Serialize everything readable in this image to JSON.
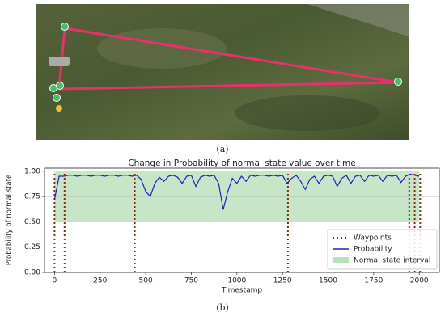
{
  "panel_labels": [
    "(a)",
    "(b)"
  ],
  "chart_data": {
    "type": "line",
    "title": "Change in Probability of normal state value over time",
    "x_label": "Timestamp",
    "y_label": "Probability of normal state",
    "xlim": [
      -55,
      2110
    ],
    "ylim": [
      0,
      1.03
    ],
    "xticks": [
      0,
      250,
      500,
      750,
      1000,
      1250,
      1500,
      1750,
      2000
    ],
    "yticks": [
      {
        "value": 0,
        "label": "0.00"
      },
      {
        "value": 0.25,
        "label": "0.25"
      },
      {
        "value": 0.5,
        "label": "0.50"
      },
      {
        "value": 0.75,
        "label": "0.75"
      },
      {
        "value": 1,
        "label": "1.00"
      }
    ],
    "grid": true,
    "legend": "lower right",
    "x": [
      0,
      25,
      50,
      75,
      100,
      125,
      150,
      175,
      200,
      225,
      250,
      275,
      300,
      325,
      350,
      375,
      400,
      425,
      450,
      475,
      500,
      525,
      550,
      575,
      600,
      625,
      650,
      675,
      700,
      725,
      750,
      775,
      800,
      825,
      850,
      875,
      900,
      925,
      950,
      975,
      1000,
      1025,
      1050,
      1075,
      1100,
      1125,
      1150,
      1175,
      1200,
      1225,
      1250,
      1275,
      1300,
      1325,
      1350,
      1375,
      1400,
      1425,
      1450,
      1475,
      1500,
      1525,
      1550,
      1575,
      1600,
      1625,
      1650,
      1675,
      1700,
      1725,
      1750,
      1775,
      1800,
      1825,
      1850,
      1875,
      1900,
      1925,
      1950,
      1975,
      2000
    ],
    "waypoints": {
      "name": "Waypoints",
      "color": "#8b2a0e",
      "x": [
        0,
        55,
        440,
        1280,
        1945,
        1975,
        2005
      ]
    },
    "series": [
      {
        "name": "Probability",
        "color": "#1f1fc8",
        "values": [
          0.72,
          0.95,
          0.95,
          0.96,
          0.96,
          0.95,
          0.96,
          0.96,
          0.95,
          0.96,
          0.96,
          0.95,
          0.96,
          0.96,
          0.95,
          0.96,
          0.96,
          0.95,
          0.96,
          0.92,
          0.8,
          0.75,
          0.88,
          0.94,
          0.9,
          0.95,
          0.96,
          0.94,
          0.88,
          0.95,
          0.96,
          0.85,
          0.94,
          0.96,
          0.95,
          0.96,
          0.88,
          0.62,
          0.8,
          0.93,
          0.88,
          0.95,
          0.9,
          0.96,
          0.95,
          0.96,
          0.96,
          0.95,
          0.96,
          0.95,
          0.96,
          0.88,
          0.93,
          0.96,
          0.9,
          0.82,
          0.92,
          0.95,
          0.88,
          0.95,
          0.96,
          0.95,
          0.85,
          0.93,
          0.96,
          0.88,
          0.95,
          0.96,
          0.9,
          0.96,
          0.95,
          0.96,
          0.9,
          0.96,
          0.95,
          0.96,
          0.89,
          0.95,
          0.97,
          0.96,
          0.95
        ]
      }
    ],
    "interval": {
      "name": "Normal state interval",
      "color": "#b9e0b9",
      "x": [
        0,
        2000
      ],
      "y": [
        0.5,
        1
      ]
    }
  }
}
